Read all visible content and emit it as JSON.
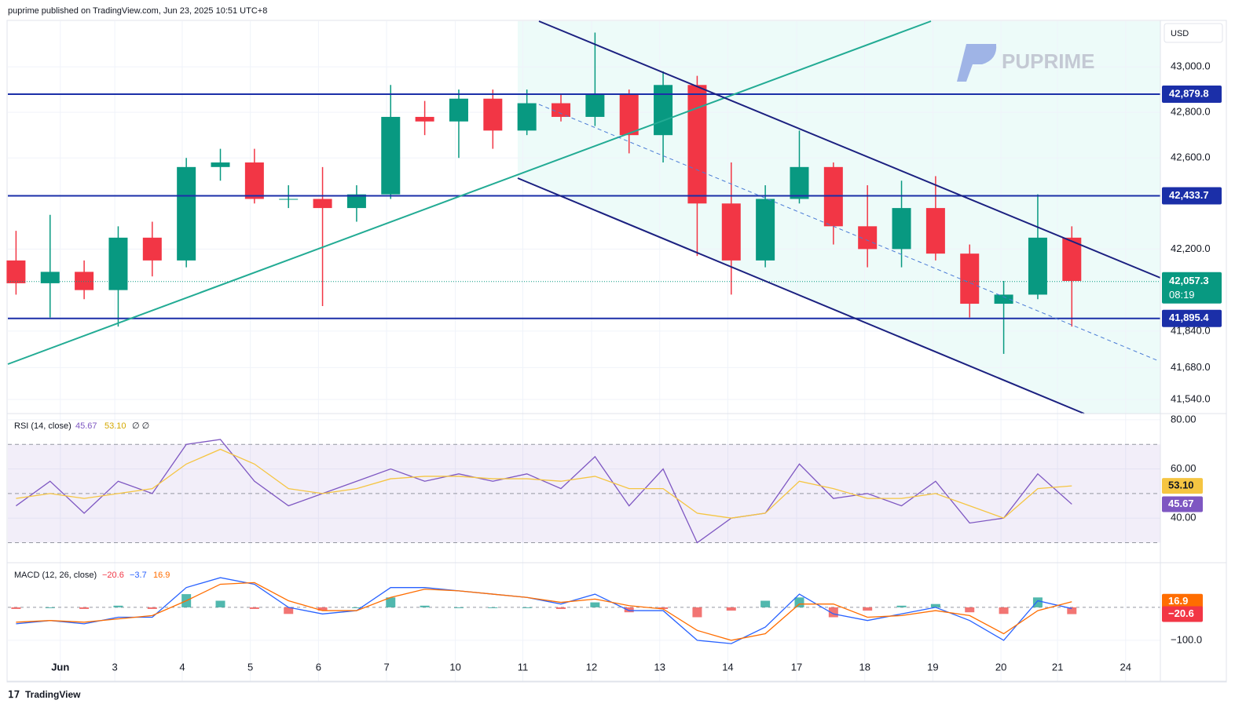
{
  "chart_data": {
    "type": "candlestick",
    "title": "puprime published on TradingView.com, Jun 23, 2025 10:51 UTC+8",
    "currency": "USD",
    "watermark": "PUPRIME",
    "footer": "TradingView",
    "grid": true,
    "colors": {
      "up": "#089981",
      "down": "#f23645"
    },
    "x": [
      -0.65,
      -0.15,
      0.35,
      0.85,
      1.35,
      1.85,
      2.35,
      2.85,
      3.35,
      3.85,
      4.35,
      4.85,
      5.35,
      5.85,
      6.35,
      6.85,
      7.35,
      7.85,
      8.35,
      8.85,
      9.35,
      9.85,
      10.35,
      10.85,
      11.35,
      11.85,
      12.35,
      12.85,
      13.35,
      13.85,
      14.35,
      14.85
    ],
    "open": [
      42150,
      42050,
      42100,
      42020,
      42250,
      42150,
      42560,
      42580,
      42420,
      42420,
      42380,
      42440,
      42780,
      42760,
      42860,
      42720,
      42840,
      42780,
      42880,
      42700,
      42920,
      42400,
      42150,
      42420,
      42560,
      42300,
      42200,
      42380,
      42180,
      41960,
      42000,
      42250
    ],
    "high": [
      42280,
      42350,
      42150,
      42300,
      42320,
      42600,
      42640,
      42640,
      42480,
      42560,
      42480,
      42920,
      42850,
      42900,
      42900,
      42900,
      42880,
      43150,
      42900,
      42980,
      42960,
      42580,
      42480,
      42720,
      42580,
      42480,
      42500,
      42520,
      42220,
      42060,
      42440,
      42300
    ],
    "low": [
      42000,
      41900,
      41980,
      41860,
      42080,
      42120,
      42500,
      42400,
      42380,
      41950,
      42320,
      42420,
      42700,
      42600,
      42640,
      42700,
      42760,
      42740,
      42620,
      42580,
      42170,
      42000,
      42120,
      42400,
      42220,
      42120,
      42120,
      42150,
      41900,
      41740,
      41980,
      41860
    ],
    "close": [
      42050,
      42100,
      42020,
      42250,
      42150,
      42560,
      42580,
      42420,
      42420,
      42380,
      42440,
      42780,
      42760,
      42860,
      42720,
      42840,
      42780,
      42880,
      42700,
      42920,
      42400,
      42150,
      42420,
      42560,
      42300,
      42200,
      42380,
      42180,
      41960,
      42000,
      42250,
      42060
    ],
    "xlim": [
      -0.77,
      16.15
    ],
    "xticks": [
      {
        "value": 0,
        "label": "Jun"
      },
      {
        "value": 0.8,
        "label": "3"
      },
      {
        "value": 1.79,
        "label": "4"
      },
      {
        "value": 2.79,
        "label": "5"
      },
      {
        "value": 3.79,
        "label": "6"
      },
      {
        "value": 4.79,
        "label": "7"
      },
      {
        "value": 5.8,
        "label": "10"
      },
      {
        "value": 6.79,
        "label": "11"
      },
      {
        "value": 7.8,
        "label": "12"
      },
      {
        "value": 8.8,
        "label": "13"
      },
      {
        "value": 9.8,
        "label": "14"
      },
      {
        "value": 10.81,
        "label": "17"
      },
      {
        "value": 11.81,
        "label": "18"
      },
      {
        "value": 12.81,
        "label": "19"
      },
      {
        "value": 13.81,
        "label": "20"
      },
      {
        "value": 14.64,
        "label": "21"
      },
      {
        "value": 15.64,
        "label": "24"
      }
    ],
    "ylim": [
      41478,
      43200
    ],
    "yticks": [
      {
        "value": 43000,
        "label": "43,000.0"
      },
      {
        "value": 42800,
        "label": "42,800.0"
      },
      {
        "value": 42600,
        "label": "42,600.0"
      },
      {
        "value": 42200,
        "label": "42,200.0"
      },
      {
        "value": 41840,
        "label": "41,840.0"
      },
      {
        "value": 41680,
        "label": "41,680.0"
      },
      {
        "value": 41540,
        "label": "41,540.0"
      }
    ],
    "levels": [
      {
        "value": 42879.8,
        "label": "42,879.8"
      },
      {
        "value": 42433.7,
        "label": "42,433.7"
      },
      {
        "value": 41895.4,
        "label": "41,895.4"
      }
    ],
    "level_color": "#1b2fa8",
    "last": {
      "value": 42057.3,
      "label": "42,057.3",
      "countdown": "08:19",
      "color": "#089981"
    },
    "rsi": {
      "legend": "RSI (14, close)",
      "legend_extra": "∅ ∅",
      "ylim": [
        25.7,
        82.2
      ],
      "yticks": [
        {
          "value": 80,
          "label": "80.00"
        },
        {
          "value": 60,
          "label": "60.00"
        },
        {
          "value": 40,
          "label": "40.00"
        }
      ],
      "bands": [
        30,
        70
      ],
      "mid": 50,
      "series": [
        {
          "name": "RSI",
          "color": "#7e57c2",
          "last_label": "45.67",
          "values": [
            45,
            55,
            42,
            55,
            50,
            70,
            72,
            55,
            45,
            50,
            55,
            60,
            55,
            58,
            55,
            58,
            52,
            65,
            45,
            60,
            30,
            40,
            42,
            62,
            48,
            50,
            45,
            55,
            38,
            40,
            58,
            45.67
          ]
        },
        {
          "name": "MA",
          "color": "#f5c542",
          "last_label": "53.10",
          "values": [
            48,
            50,
            48,
            50,
            52,
            62,
            68,
            62,
            52,
            50,
            52,
            56,
            57,
            57,
            56,
            56,
            55,
            57,
            52,
            52,
            42,
            40,
            42,
            55,
            52,
            48,
            48,
            50,
            45,
            40,
            52,
            53.1
          ]
        }
      ]
    },
    "macd": {
      "legend": "MACD (12, 26, close)",
      "ylim": [
        -224,
        133
      ],
      "yticks": [
        {
          "value": -100,
          "label": "−100.0"
        }
      ],
      "zero": 0,
      "histogram": {
        "name": "Histogram",
        "up_color": "#26a69a",
        "down_color": "#ef5350",
        "last_label": "−20.6",
        "label_color": "#f23645",
        "values": [
          -5,
          0,
          -5,
          5,
          -5,
          40,
          20,
          -5,
          -20,
          -10,
          0,
          30,
          5,
          0,
          0,
          0,
          -5,
          15,
          -15,
          -5,
          -30,
          -10,
          20,
          30,
          -30,
          -10,
          5,
          10,
          -15,
          -20,
          30,
          -20.6
        ]
      },
      "series": [
        {
          "name": "MACD",
          "color": "#2962ff",
          "last_label": "−3.7",
          "values": [
            -50,
            -40,
            -50,
            -30,
            -30,
            60,
            90,
            70,
            0,
            -20,
            -10,
            60,
            60,
            50,
            40,
            30,
            10,
            40,
            -10,
            -10,
            -100,
            -110,
            -60,
            40,
            -20,
            -40,
            -20,
            0,
            -40,
            -100,
            20,
            -3.7
          ]
        },
        {
          "name": "Signal",
          "color": "#ff6d00",
          "last_label": "16.9",
          "values": [
            -45,
            -40,
            -45,
            -35,
            -25,
            20,
            70,
            75,
            20,
            -10,
            -10,
            30,
            55,
            50,
            40,
            30,
            15,
            25,
            5,
            -5,
            -70,
            -100,
            -80,
            10,
            10,
            -30,
            -25,
            -10,
            -25,
            -80,
            -10,
            16.9
          ]
        }
      ]
    }
  }
}
